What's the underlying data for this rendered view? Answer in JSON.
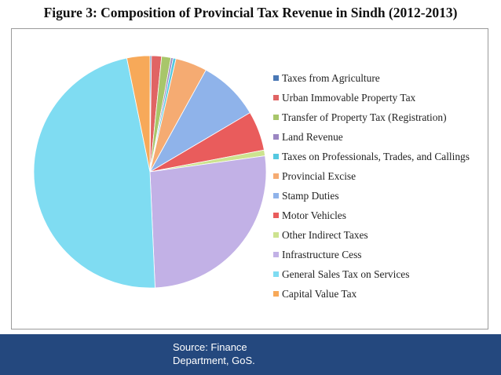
{
  "title": "Figure 3: Composition of Provincial Tax Revenue in Sindh (2012-2013)",
  "footer": {
    "source": "Source: Finance Department, GoS."
  },
  "chart_data": {
    "type": "pie",
    "title": "Figure 3: Composition of Provincial Tax Revenue in Sindh (2012-2013)",
    "legend_position": "right",
    "start_angle_deg": 0,
    "direction": "clockwise",
    "slices": [
      {
        "label": "Taxes from Agriculture",
        "value": 0.2,
        "color": "#4a78b5"
      },
      {
        "label": "Urban Immovable Property Tax",
        "value": 1.4,
        "color": "#e06464"
      },
      {
        "label": "Transfer of Property Tax (Registration)",
        "value": 1.3,
        "color": "#a8c66a"
      },
      {
        "label": "Land Revenue",
        "value": 0.3,
        "color": "#9b86c2"
      },
      {
        "label": "Taxes on Professionals, Trades, and Callings",
        "value": 0.4,
        "color": "#55c8e0"
      },
      {
        "label": "Provincial Excise",
        "value": 4.4,
        "color": "#f5ab72"
      },
      {
        "label": "Stamp Duties",
        "value": 8.5,
        "color": "#8fb3ea"
      },
      {
        "label": "Motor Vehicles",
        "value": 5.5,
        "color": "#e95c5c"
      },
      {
        "label": "Other Indirect Taxes",
        "value": 0.8,
        "color": "#cde38f"
      },
      {
        "label": "Infrastructure Cess",
        "value": 26.5,
        "color": "#c2b1e6"
      },
      {
        "label": "General Sales Tax on Services",
        "value": 47.5,
        "color": "#7fdcf2"
      },
      {
        "label": "Capital Value Tax",
        "value": 3.2,
        "color": "#f7a959"
      }
    ]
  }
}
